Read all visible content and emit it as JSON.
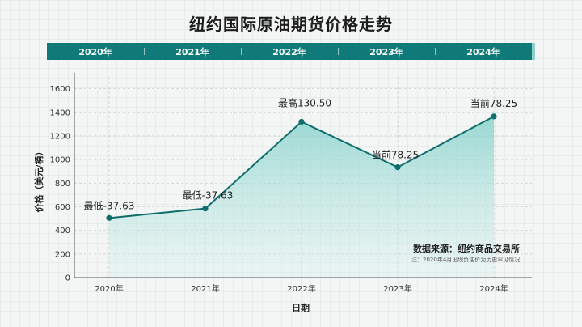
{
  "chart_data": {
    "type": "area",
    "title": "纽约国际原油期货价格走势",
    "header_years": [
      "2020年",
      "2021年",
      "2022年",
      "2023年",
      "2024年"
    ],
    "categories": [
      "2020年",
      "2021年",
      "2022年",
      "2023年",
      "2024年"
    ],
    "values": [
      505,
      585,
      1320,
      935,
      1365
    ],
    "data_labels": [
      "最低-37.63",
      "最低-37.63",
      "最高130.50",
      "当前78.25",
      "当前78.25"
    ],
    "ylabel": "价格（美元/桶）",
    "xlabel": "日期",
    "ylim": [
      0,
      1700
    ],
    "yticks": [
      0,
      200,
      400,
      600,
      800,
      1000,
      1200,
      1400,
      1600
    ],
    "grid": true,
    "colors": {
      "line": "#0f6e6c",
      "fill": "#a8dbd6",
      "header": "#0f7a78"
    }
  },
  "source": "数据来源：纽约商品交易所",
  "note": "注：2020年4月出现负油价为历史罕见情况"
}
